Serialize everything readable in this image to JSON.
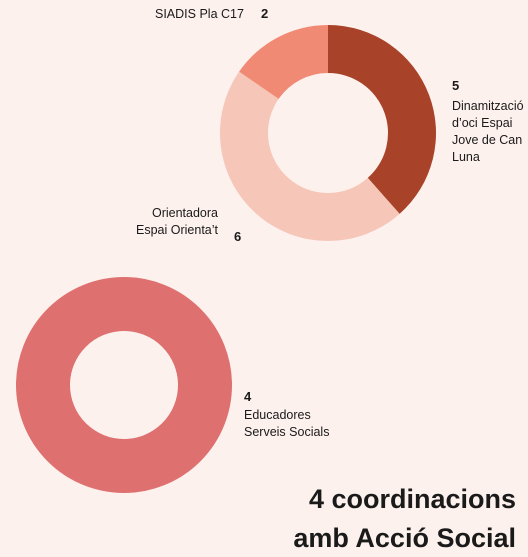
{
  "chart_data": [
    {
      "type": "pie",
      "donut": true,
      "categories": [
        "Dinamització d’oci Espai Jove de Can Luna",
        "Orientadora Espai Orienta’t",
        "SIADIS Pla C17"
      ],
      "values": [
        5,
        6,
        2
      ],
      "colors": [
        "#a8432a",
        "#f6c6b8",
        "#f08a74"
      ]
    },
    {
      "type": "pie",
      "donut": true,
      "categories": [
        "Educadores Serveis Socials"
      ],
      "values": [
        4
      ],
      "colors": [
        "#de7070"
      ]
    }
  ],
  "heading_lines": [
    "4 coordinacions",
    "amb Acció Social"
  ]
}
